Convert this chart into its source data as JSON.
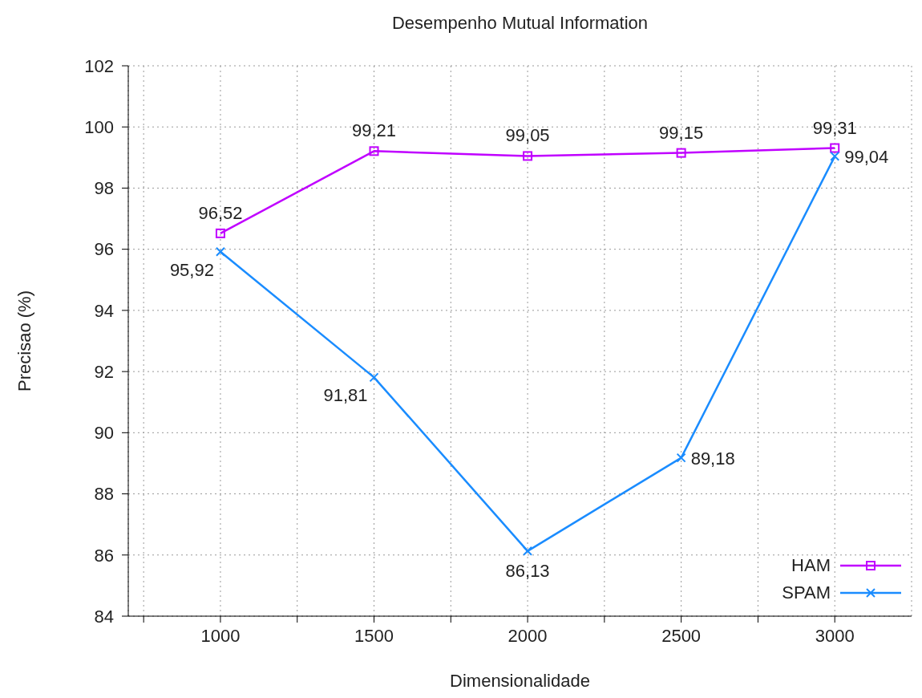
{
  "chart_data": {
    "type": "line",
    "title": "Desempenho Mutual Information",
    "xlabel": "Dimensionalidade",
    "ylabel": "Precisao (%)",
    "x": [
      1000,
      1500,
      2000,
      2500,
      3000
    ],
    "xlim": [
      700,
      3250
    ],
    "xticks": [
      {
        "value": 750,
        "label": null
      },
      1000,
      {
        "value": 1250,
        "label": null
      },
      1500,
      {
        "value": 1750,
        "label": null
      },
      2000,
      {
        "value": 2250,
        "label": null
      },
      2500,
      {
        "value": 2750,
        "label": null
      },
      3000
    ],
    "ylim": [
      84,
      102
    ],
    "yticks": [
      84,
      86,
      88,
      90,
      92,
      94,
      96,
      98,
      100,
      102
    ],
    "grid": true,
    "legend": "bottom right",
    "line_style": "solid",
    "series": [
      {
        "name": "HAM",
        "color": "#c000ff",
        "marker": "square",
        "values": [
          96.52,
          99.21,
          99.05,
          99.15,
          99.31
        ],
        "value_labels": [
          "96,52",
          "99,21",
          "99,05",
          "99,15",
          "99,31"
        ]
      },
      {
        "name": "SPAM",
        "color": "#1a8cff",
        "marker": "cross",
        "values": [
          95.92,
          91.81,
          86.13,
          89.18,
          99.04
        ],
        "value_labels": [
          "95,92",
          "91,81",
          "86,13",
          "89,18",
          "99,04"
        ]
      }
    ]
  }
}
